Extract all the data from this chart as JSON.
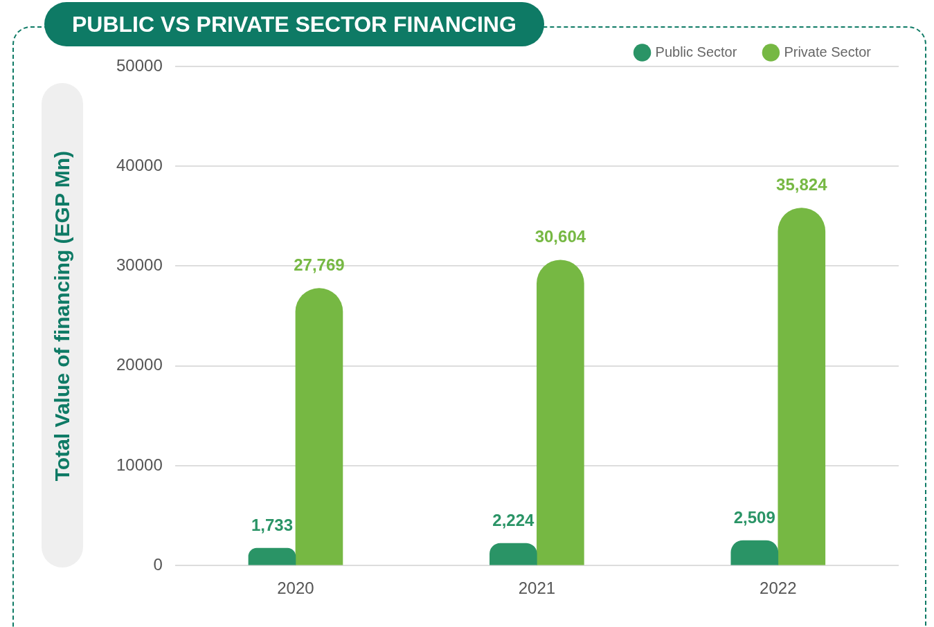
{
  "chart_data": {
    "type": "bar",
    "title": "PUBLIC VS PRIVATE SECTOR FINANCING",
    "ylabel": "Total Value of financing (EGP Mn)",
    "categories": [
      "2020",
      "2021",
      "2022"
    ],
    "series": [
      {
        "name": "Public Sector",
        "color": "#2a9466",
        "values": [
          1733,
          2224,
          2509
        ],
        "value_labels": [
          "1,733",
          "2,224",
          "2,509"
        ]
      },
      {
        "name": "Private Sector",
        "color": "#76b843",
        "values": [
          27769,
          30604,
          35824
        ],
        "value_labels": [
          "27,769",
          "30,604",
          "35,824"
        ]
      }
    ],
    "ylim": [
      0,
      50000
    ],
    "yticks": [
      0,
      10000,
      20000,
      30000,
      40000,
      50000
    ],
    "grid": "y",
    "legend": "top right"
  }
}
